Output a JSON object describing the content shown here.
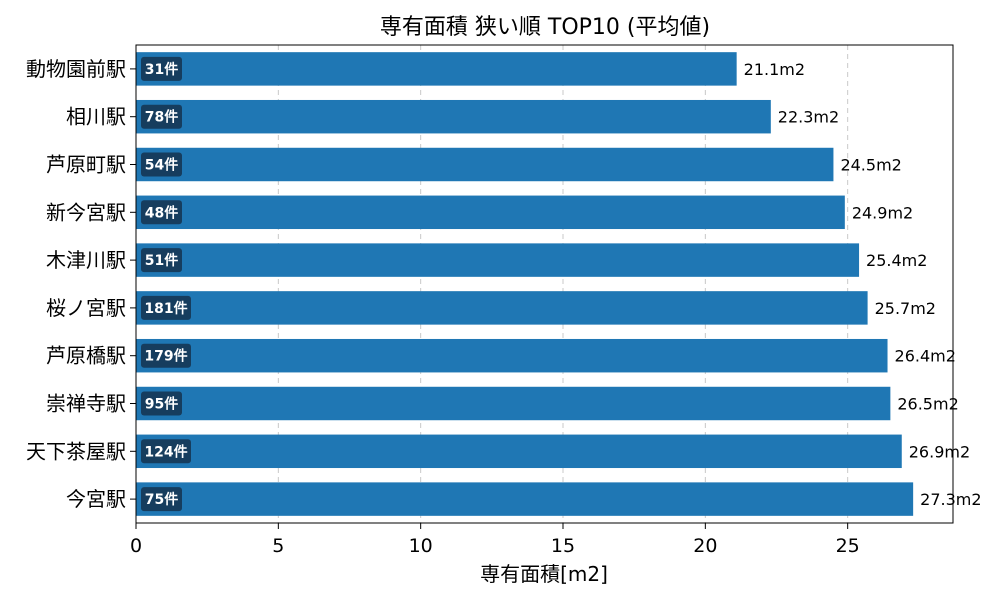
{
  "chart_data": {
    "type": "bar",
    "orientation": "horizontal",
    "title": "専有面積 狭い順 TOP10 (平均値)",
    "xlabel": "専有面積[m2]",
    "ylabel": "",
    "xlim": [
      0,
      28.7
    ],
    "x_ticks": [
      0,
      5,
      10,
      15,
      20,
      25
    ],
    "x_tick_labels": [
      "0",
      "5",
      "10",
      "15",
      "20",
      "25"
    ],
    "grid": "vertical dashed",
    "categories": [
      "動物園前駅",
      "相川駅",
      "芦原町駅",
      "新今宮駅",
      "木津川駅",
      "桜ノ宮駅",
      "芦原橋駅",
      "崇禅寺駅",
      "天下茶屋駅",
      "今宮駅"
    ],
    "values": [
      21.1,
      22.3,
      24.5,
      24.9,
      25.4,
      25.7,
      26.4,
      26.5,
      26.9,
      27.3
    ],
    "value_labels": [
      "21.1m2",
      "22.3m2",
      "24.5m2",
      "24.9m2",
      "25.4m2",
      "25.7m2",
      "26.4m2",
      "26.5m2",
      "26.9m2",
      "27.3m2"
    ],
    "counts": [
      "31件",
      "78件",
      "54件",
      "48件",
      "51件",
      "181件",
      "179件",
      "95件",
      "124件",
      "75件"
    ],
    "colors": {
      "bar": "#1f77b4",
      "badge": "#163d5e",
      "grid": "#c8c8c8"
    }
  }
}
